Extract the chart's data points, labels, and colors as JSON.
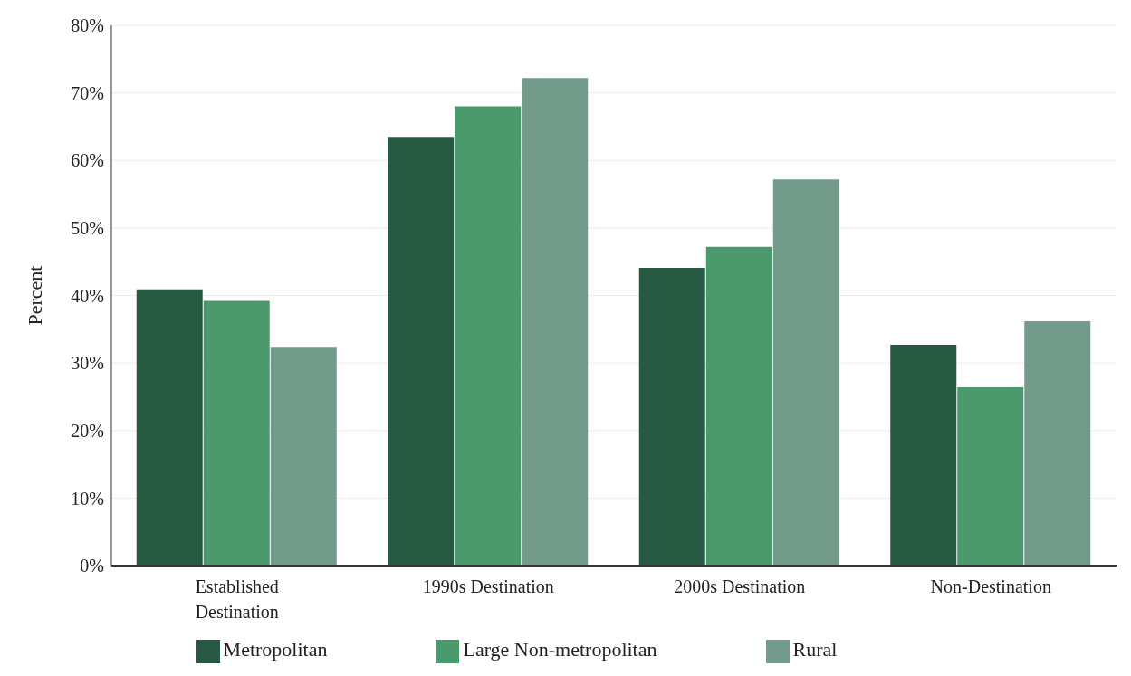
{
  "chart_data": {
    "type": "bar",
    "ylabel": "Percent",
    "categories": [
      "Established Destination",
      "1990s Destination",
      "2000s Destination",
      "Non-Destination"
    ],
    "series": [
      {
        "name": "Metropolitan",
        "color": "#285a43",
        "values": [
          40.9,
          63.5,
          44.1,
          32.7
        ]
      },
      {
        "name": "Large Non-metropolitan",
        "color": "#4a9a6e",
        "values": [
          39.2,
          68.0,
          47.2,
          26.4
        ]
      },
      {
        "name": "Rural",
        "color": "#739b8b",
        "values": [
          32.4,
          72.2,
          57.2,
          36.2
        ]
      }
    ],
    "ylim": [
      0,
      80
    ],
    "yticks": [
      {
        "value": 0,
        "label": "0%"
      },
      {
        "value": 10,
        "label": "10%"
      },
      {
        "value": 20,
        "label": "20%"
      },
      {
        "value": 30,
        "label": "30%"
      },
      {
        "value": 40,
        "label": "40%"
      },
      {
        "value": 50,
        "label": "50%"
      },
      {
        "value": 60,
        "label": "60%"
      },
      {
        "value": 70,
        "label": "70%"
      },
      {
        "value": 80,
        "label": "80%"
      }
    ],
    "grid": "y",
    "legend": "bottom"
  }
}
